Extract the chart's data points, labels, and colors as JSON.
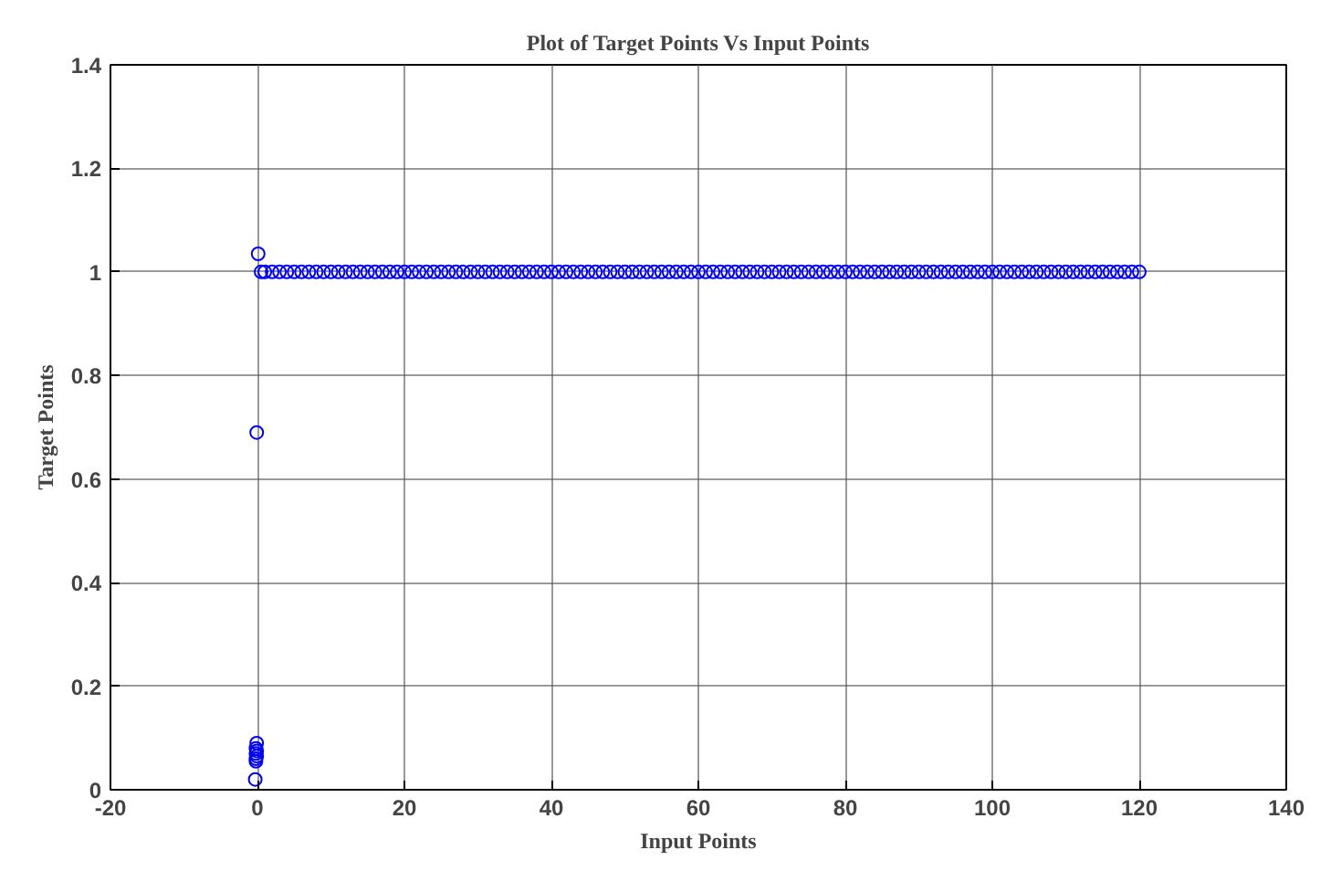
{
  "chart_data": {
    "type": "scatter",
    "title": "Plot of Target Points Vs Input Points",
    "xlabel": "Input Points",
    "ylabel": "Target Points",
    "xlim": [
      -20,
      140
    ],
    "ylim": [
      0,
      1.4
    ],
    "xticks": [
      -20,
      0,
      20,
      40,
      60,
      80,
      100,
      120,
      140
    ],
    "yticks": [
      0,
      0.2,
      0.4,
      0.6,
      0.8,
      1,
      1.2,
      1.4
    ],
    "grid": true,
    "marker": "circle",
    "series": [
      {
        "color": "#0000ff",
        "x": [
          0.1,
          -0.1,
          -0.3,
          -0.2,
          -0.2,
          -0.1,
          -0.2,
          -0.1,
          -0.2,
          -0.1,
          0.5,
          1,
          2,
          3,
          4,
          5,
          6,
          7,
          8,
          9,
          10,
          11,
          12,
          13,
          14,
          15,
          16,
          17,
          18,
          19,
          20,
          21,
          22,
          23,
          24,
          25,
          26,
          27,
          28,
          29,
          30,
          31,
          32,
          33,
          34,
          35,
          36,
          37,
          38,
          39,
          40,
          41,
          42,
          43,
          44,
          45,
          46,
          47,
          48,
          49,
          50,
          51,
          52,
          53,
          54,
          55,
          56,
          57,
          58,
          59,
          60,
          61,
          62,
          63,
          64,
          65,
          66,
          67,
          68,
          69,
          70,
          71,
          72,
          73,
          74,
          75,
          76,
          77,
          78,
          79,
          80,
          81,
          82,
          83,
          84,
          85,
          86,
          87,
          88,
          89,
          90,
          91,
          92,
          93,
          94,
          95,
          96,
          97,
          98,
          99,
          100,
          101,
          102,
          103,
          104,
          105,
          106,
          107,
          108,
          109,
          110,
          111,
          112,
          113,
          114,
          115,
          116,
          117,
          118,
          119,
          120
        ],
        "values": [
          1.035,
          0.69,
          0.02,
          0.055,
          0.06,
          0.065,
          0.07,
          0.075,
          0.08,
          0.09,
          1,
          1,
          1,
          1,
          1,
          1,
          1,
          1,
          1,
          1,
          1,
          1,
          1,
          1,
          1,
          1,
          1,
          1,
          1,
          1,
          1,
          1,
          1,
          1,
          1,
          1,
          1,
          1,
          1,
          1,
          1,
          1,
          1,
          1,
          1,
          1,
          1,
          1,
          1,
          1,
          1,
          1,
          1,
          1,
          1,
          1,
          1,
          1,
          1,
          1,
          1,
          1,
          1,
          1,
          1,
          1,
          1,
          1,
          1,
          1,
          1,
          1,
          1,
          1,
          1,
          1,
          1,
          1,
          1,
          1,
          1,
          1,
          1,
          1,
          1,
          1,
          1,
          1,
          1,
          1,
          1,
          1,
          1,
          1,
          1,
          1,
          1,
          1,
          1,
          1,
          1,
          1,
          1,
          1,
          1,
          1,
          1,
          1,
          1,
          1,
          1,
          1,
          1,
          1,
          1,
          1,
          1,
          1,
          1,
          1,
          1,
          1,
          1,
          1,
          1,
          1,
          1,
          1,
          1,
          1,
          1
        ]
      }
    ]
  }
}
